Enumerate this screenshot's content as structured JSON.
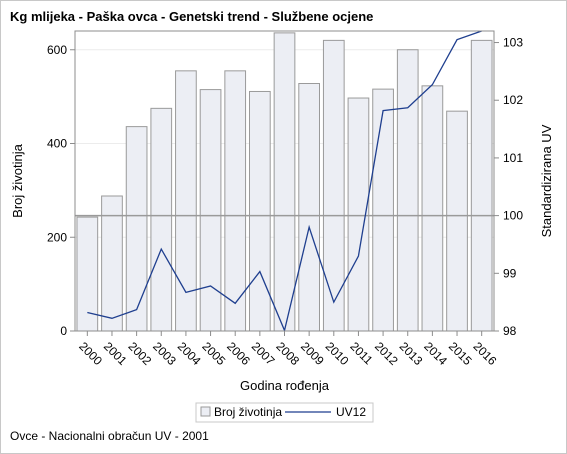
{
  "header": {
    "title": "Kg mlijeka - Paška ovca - Genetski trend - Službene ocjene"
  },
  "footer": {
    "footnote": "Ovce - Nacionalni obračun UV - 2001"
  },
  "colors": {
    "bar_fill": "#eceef4",
    "bar_stroke": "#9a9a9a",
    "line": "#1f3f8f",
    "reference_line": "#9a9a9a",
    "grid": "#ececec",
    "axis": "#8c8c8c"
  },
  "chart_data": {
    "type": "bar+line",
    "xlabel": "Godina rođenja",
    "ylabel_left": "Broj životinja",
    "ylabel_right": "Standardizirana UV",
    "categories": [
      "2000",
      "2001",
      "2002",
      "2003",
      "2004",
      "2005",
      "2006",
      "2007",
      "2008",
      "2009",
      "2010",
      "2011",
      "2012",
      "2013",
      "2014",
      "2015",
      "2016"
    ],
    "y_left": {
      "range": [
        0,
        640
      ],
      "ticks": [
        0,
        200,
        400,
        600
      ]
    },
    "y_right": {
      "range": [
        98,
        103.2
      ],
      "ticks": [
        98,
        99,
        100,
        101,
        102,
        103
      ],
      "reference": 100
    },
    "grid": true,
    "legend_position": "bottom-center",
    "series": [
      {
        "name": "Broj životinja",
        "kind": "bar",
        "axis": "left",
        "values": [
          243,
          288,
          436,
          475,
          555,
          515,
          555,
          511,
          636,
          528,
          620,
          497,
          516,
          600,
          523,
          469,
          620
        ]
      },
      {
        "name": "UV12",
        "kind": "line",
        "axis": "right",
        "values": [
          98.32,
          98.22,
          98.37,
          99.42,
          98.67,
          98.78,
          98.48,
          99.03,
          98.01,
          99.8,
          98.5,
          99.3,
          101.82,
          101.87,
          102.27,
          103.05,
          103.2
        ]
      }
    ]
  }
}
